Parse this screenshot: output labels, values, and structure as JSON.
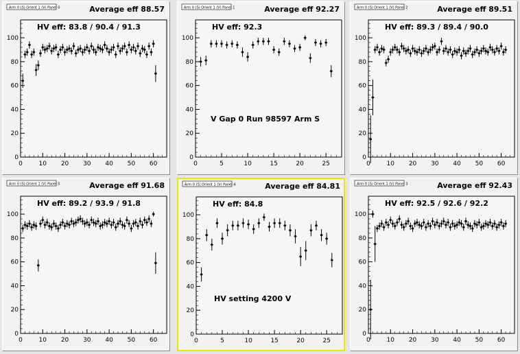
{
  "colors": {
    "pad_bg": "#f2f2f2",
    "frame_bg": "#f6f6f6",
    "marker": "#000000",
    "highlight": "#e8e800"
  },
  "chart_data": [
    {
      "type": "scatter",
      "panel_tag": "Arm 0 (S) Orient 1 (V) Panel 0",
      "title": "Average eff 88.57",
      "hv_eff": "HV eff:   83.8 / 90.4 / 91.3",
      "annotation": "",
      "xlim": [
        0,
        66
      ],
      "ylim": [
        0,
        115
      ],
      "xticks": [
        "0",
        "10",
        "20",
        "30",
        "40",
        "50",
        "60"
      ],
      "xtick_values": [
        0,
        10,
        20,
        30,
        40,
        50,
        60
      ],
      "yticks": [
        "0",
        "20",
        "40",
        "60",
        "80",
        "100"
      ],
      "ytick_values": [
        0,
        20,
        40,
        60,
        80,
        100
      ],
      "x": [
        1,
        2,
        3,
        4,
        5,
        6,
        7,
        8,
        9,
        10,
        11,
        12,
        13,
        14,
        15,
        16,
        17,
        18,
        19,
        20,
        21,
        22,
        23,
        24,
        25,
        26,
        27,
        28,
        29,
        30,
        31,
        32,
        33,
        34,
        35,
        36,
        37,
        38,
        39,
        40,
        41,
        42,
        43,
        44,
        45,
        46,
        47,
        48,
        49,
        50,
        51,
        52,
        53,
        54,
        55,
        56,
        57,
        58,
        59,
        60,
        61
      ],
      "y": [
        64,
        86,
        88,
        94,
        86,
        88,
        73,
        77,
        87,
        92,
        90,
        91,
        93,
        89,
        91,
        92,
        86,
        90,
        92,
        88,
        90,
        91,
        89,
        93,
        87,
        90,
        91,
        88,
        90,
        92,
        89,
        93,
        90,
        88,
        92,
        91,
        90,
        94,
        91,
        88,
        90,
        92,
        86,
        93,
        89,
        91,
        93,
        88,
        94,
        90,
        92,
        89,
        93,
        87,
        91,
        90,
        86,
        93,
        88,
        95,
        70
      ],
      "err": [
        6,
        3,
        3,
        3,
        3,
        3,
        5,
        4,
        3,
        3,
        3,
        3,
        3,
        3,
        3,
        3,
        3,
        3,
        3,
        3,
        3,
        3,
        3,
        3,
        3,
        3,
        3,
        3,
        3,
        3,
        3,
        3,
        3,
        3,
        3,
        3,
        3,
        3,
        3,
        3,
        3,
        3,
        3,
        3,
        3,
        3,
        3,
        3,
        3,
        3,
        3,
        3,
        3,
        3,
        3,
        3,
        3,
        3,
        3,
        3,
        7
      ]
    },
    {
      "type": "scatter",
      "panel_tag": "Arm 0 (S) Orient 1 (V) Panel 1",
      "title": "Average eff 92.27",
      "hv_eff": "HV eff:   92.3",
      "annotation": "V Gap 0 Run 98597 Arm S",
      "xlim": [
        0,
        28
      ],
      "ylim": [
        0,
        115
      ],
      "xticks": [
        "0",
        "5",
        "10",
        "15",
        "20",
        "25"
      ],
      "xtick_values": [
        0,
        5,
        10,
        15,
        20,
        25
      ],
      "yticks": [
        "0",
        "20",
        "40",
        "60",
        "80",
        "100"
      ],
      "ytick_values": [
        0,
        20,
        40,
        60,
        80,
        100
      ],
      "x": [
        1,
        2,
        3,
        4,
        5,
        6,
        7,
        8,
        9,
        10,
        11,
        12,
        13,
        14,
        15,
        16,
        17,
        18,
        19,
        20,
        21,
        22,
        23,
        24,
        25,
        26
      ],
      "y": [
        80,
        81,
        95,
        95,
        95,
        94,
        95,
        94,
        88,
        84,
        94,
        97,
        97,
        97,
        90,
        88,
        97,
        95,
        91,
        92,
        100,
        83,
        96,
        95,
        96,
        72
      ],
      "err": [
        4,
        4,
        3,
        3,
        3,
        3,
        3,
        3,
        4,
        4,
        3,
        3,
        3,
        3,
        3,
        3,
        3,
        3,
        3,
        3,
        2,
        4,
        3,
        3,
        3,
        5
      ]
    },
    {
      "type": "scatter",
      "panel_tag": "Arm 0 (S) Orient 1 (V) Panel 2",
      "title": "Average eff 89.51",
      "hv_eff": "HV eff:   89.3 / 89.4 / 90.0",
      "annotation": "",
      "xlim": [
        0,
        66
      ],
      "ylim": [
        0,
        115
      ],
      "xticks": [
        "0",
        "10",
        "20",
        "30",
        "40",
        "50",
        "60"
      ],
      "xtick_values": [
        0,
        10,
        20,
        30,
        40,
        50,
        60
      ],
      "yticks": [
        "0",
        "20",
        "40",
        "60",
        "80",
        "100"
      ],
      "ytick_values": [
        0,
        20,
        40,
        60,
        80,
        100
      ],
      "x": [
        1,
        2,
        3,
        4,
        5,
        6,
        7,
        8,
        9,
        10,
        11,
        12,
        13,
        14,
        15,
        16,
        17,
        18,
        19,
        20,
        21,
        22,
        23,
        24,
        25,
        26,
        27,
        28,
        29,
        30,
        31,
        32,
        33,
        34,
        35,
        36,
        37,
        38,
        39,
        40,
        41,
        42,
        43,
        44,
        45,
        46,
        47,
        48,
        49,
        50,
        51,
        52,
        53,
        54,
        55,
        56,
        57,
        58,
        59,
        60,
        61,
        62
      ],
      "y": [
        15,
        50,
        90,
        92,
        88,
        91,
        90,
        79,
        82,
        88,
        90,
        92,
        90,
        88,
        93,
        91,
        89,
        90,
        87,
        91,
        89,
        88,
        90,
        87,
        89,
        91,
        88,
        90,
        92,
        93,
        88,
        90,
        97,
        89,
        91,
        88,
        90,
        86,
        89,
        88,
        90,
        85,
        89,
        87,
        89,
        91,
        86,
        88,
        90,
        87,
        89,
        91,
        89,
        88,
        92,
        90,
        88,
        91,
        89,
        93,
        88,
        90
      ],
      "err": [
        20,
        15,
        3,
        3,
        3,
        3,
        3,
        3,
        3,
        3,
        3,
        3,
        3,
        3,
        3,
        3,
        3,
        3,
        3,
        3,
        3,
        3,
        3,
        3,
        3,
        3,
        3,
        3,
        3,
        3,
        3,
        3,
        3,
        3,
        3,
        3,
        3,
        3,
        3,
        3,
        3,
        3,
        3,
        3,
        3,
        3,
        3,
        3,
        3,
        3,
        3,
        3,
        3,
        3,
        3,
        3,
        3,
        3,
        3,
        3,
        3,
        3
      ]
    },
    {
      "type": "scatter",
      "panel_tag": "Arm 0 (S) Orient 1 (V) Panel 5",
      "title": "Average eff 91.68",
      "hv_eff": "HV eff:   89.2 / 93.9 / 91.8",
      "annotation": "",
      "xlim": [
        0,
        66
      ],
      "ylim": [
        0,
        115
      ],
      "xticks": [
        "0",
        "10",
        "20",
        "30",
        "40",
        "50",
        "60"
      ],
      "xtick_values": [
        0,
        10,
        20,
        30,
        40,
        50,
        60
      ],
      "yticks": [
        "0",
        "20",
        "40",
        "60",
        "80",
        "100"
      ],
      "ytick_values": [
        0,
        20,
        40,
        60,
        80,
        100
      ],
      "x": [
        1,
        2,
        3,
        4,
        5,
        6,
        7,
        8,
        9,
        10,
        11,
        12,
        13,
        14,
        15,
        16,
        17,
        18,
        19,
        20,
        21,
        22,
        23,
        24,
        25,
        26,
        27,
        28,
        29,
        30,
        31,
        32,
        33,
        34,
        35,
        36,
        37,
        38,
        39,
        40,
        41,
        42,
        43,
        44,
        45,
        46,
        47,
        48,
        49,
        50,
        51,
        52,
        53,
        54,
        55,
        56,
        57,
        58,
        59,
        60,
        61
      ],
      "y": [
        88,
        91,
        90,
        92,
        89,
        91,
        90,
        57,
        92,
        95,
        91,
        93,
        90,
        89,
        92,
        90,
        88,
        91,
        93,
        90,
        92,
        91,
        94,
        92,
        93,
        95,
        96,
        94,
        92,
        93,
        91,
        95,
        93,
        92,
        94,
        90,
        91,
        93,
        92,
        94,
        91,
        93,
        89,
        92,
        94,
        91,
        90,
        95,
        92,
        88,
        92,
        93,
        90,
        94,
        91,
        95,
        93,
        96,
        92,
        100,
        59
      ],
      "err": [
        3,
        3,
        3,
        3,
        3,
        3,
        3,
        5,
        3,
        3,
        3,
        3,
        3,
        3,
        3,
        3,
        3,
        3,
        3,
        3,
        3,
        3,
        3,
        3,
        3,
        3,
        3,
        3,
        3,
        3,
        3,
        3,
        3,
        3,
        3,
        3,
        3,
        3,
        3,
        3,
        3,
        3,
        3,
        3,
        3,
        3,
        3,
        3,
        3,
        3,
        3,
        3,
        3,
        3,
        3,
        3,
        3,
        3,
        3,
        2,
        9
      ]
    },
    {
      "type": "scatter",
      "panel_tag": "Arm 0 (S) Orient 1 (V) Panel 4",
      "title": "Average eff 84.81",
      "hv_eff": "HV eff:   84.8",
      "annotation": "HV setting 4200 V",
      "xlim": [
        0,
        28
      ],
      "ylim": [
        0,
        115
      ],
      "xticks": [
        "0",
        "5",
        "10",
        "15",
        "20",
        "25"
      ],
      "xtick_values": [
        0,
        5,
        10,
        15,
        20,
        25
      ],
      "yticks": [
        "0",
        "20",
        "40",
        "60",
        "80",
        "100"
      ],
      "ytick_values": [
        0,
        20,
        40,
        60,
        80,
        100
      ],
      "x": [
        1,
        2,
        3,
        4,
        5,
        6,
        7,
        8,
        9,
        10,
        11,
        12,
        13,
        14,
        15,
        16,
        17,
        18,
        19,
        20,
        21,
        22,
        23,
        24,
        25,
        26
      ],
      "y": [
        50,
        83,
        75,
        93,
        80,
        87,
        91,
        91,
        93,
        92,
        88,
        93,
        98,
        90,
        93,
        93,
        91,
        87,
        82,
        65,
        70,
        87,
        91,
        83,
        80,
        62
      ],
      "err": [
        6,
        5,
        5,
        4,
        5,
        5,
        4,
        4,
        4,
        4,
        4,
        4,
        3,
        4,
        4,
        4,
        4,
        5,
        6,
        8,
        8,
        5,
        4,
        5,
        5,
        6
      ]
    },
    {
      "type": "scatter",
      "panel_tag": "Arm 0 (S) Orient 1 (V) Panel 3",
      "title": "Average eff 92.43",
      "hv_eff": "HV eff:   92.5 / 92.6 / 92.2",
      "annotation": "",
      "xlim": [
        0,
        66
      ],
      "ylim": [
        0,
        115
      ],
      "xticks": [
        "0",
        "10",
        "20",
        "30",
        "40",
        "50",
        "60"
      ],
      "xtick_values": [
        0,
        10,
        20,
        30,
        40,
        50,
        60
      ],
      "yticks": [
        "0",
        "20",
        "40",
        "60",
        "80",
        "100"
      ],
      "ytick_values": [
        0,
        20,
        40,
        60,
        80,
        100
      ],
      "x": [
        1,
        2,
        3,
        4,
        5,
        6,
        7,
        8,
        9,
        10,
        11,
        12,
        13,
        14,
        15,
        16,
        17,
        18,
        19,
        20,
        21,
        22,
        23,
        24,
        25,
        26,
        27,
        28,
        29,
        30,
        31,
        32,
        33,
        34,
        35,
        36,
        37,
        38,
        39,
        40,
        41,
        42,
        43,
        44,
        45,
        46,
        47,
        48,
        49,
        50,
        51,
        52,
        53,
        54,
        55,
        56,
        57,
        58,
        59,
        60,
        61,
        62
      ],
      "y": [
        20,
        100,
        75,
        88,
        90,
        92,
        89,
        93,
        91,
        95,
        92,
        90,
        93,
        96,
        91,
        89,
        92,
        94,
        90,
        88,
        92,
        93,
        91,
        90,
        93,
        89,
        92,
        90,
        94,
        91,
        93,
        90,
        92,
        94,
        91,
        93,
        89,
        92,
        90,
        91,
        93,
        92,
        89,
        94,
        91,
        90,
        88,
        92,
        91,
        93,
        89,
        90,
        92,
        91,
        93,
        90,
        92,
        89,
        91,
        93,
        90,
        92
      ],
      "err": [
        25,
        3,
        15,
        3,
        3,
        3,
        3,
        3,
        3,
        3,
        3,
        3,
        3,
        3,
        3,
        3,
        3,
        3,
        3,
        3,
        3,
        3,
        3,
        3,
        3,
        3,
        3,
        3,
        3,
        3,
        3,
        3,
        3,
        3,
        3,
        3,
        3,
        3,
        3,
        3,
        3,
        3,
        3,
        3,
        3,
        3,
        3,
        3,
        3,
        3,
        3,
        3,
        3,
        3,
        3,
        3,
        3,
        3,
        3,
        3,
        3,
        3
      ]
    }
  ]
}
